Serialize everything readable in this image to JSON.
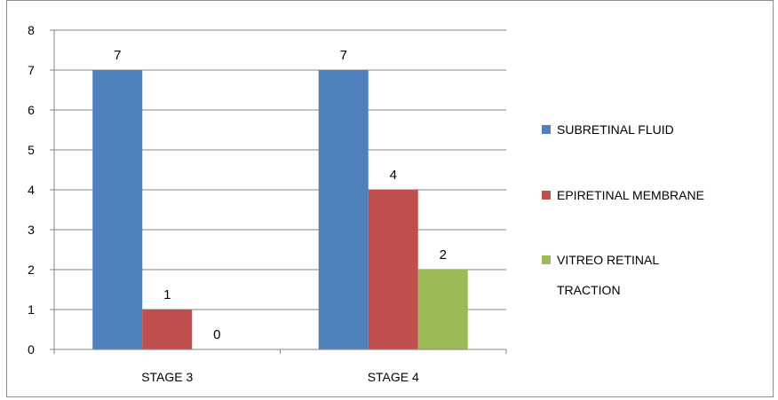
{
  "chart_data": {
    "type": "bar",
    "categories": [
      "STAGE 3",
      "STAGE 4"
    ],
    "series": [
      {
        "name": "SUBRETINAL FLUID",
        "values": [
          7,
          7
        ],
        "color": "#4f81bd"
      },
      {
        "name": "EPIRETINAL MEMBRANE",
        "values": [
          1,
          4
        ],
        "color": "#c0504d"
      },
      {
        "name": "VITREO RETINAL TRACTION",
        "values": [
          0,
          2
        ],
        "color": "#9bbb59"
      }
    ],
    "yticks": [
      "0",
      "1",
      "2",
      "3",
      "4",
      "5",
      "6",
      "7",
      "8"
    ],
    "ylim": [
      0,
      8
    ],
    "grid": true,
    "legend_position": "right",
    "data_labels": true,
    "title": "",
    "xlabel": "",
    "ylabel": ""
  }
}
